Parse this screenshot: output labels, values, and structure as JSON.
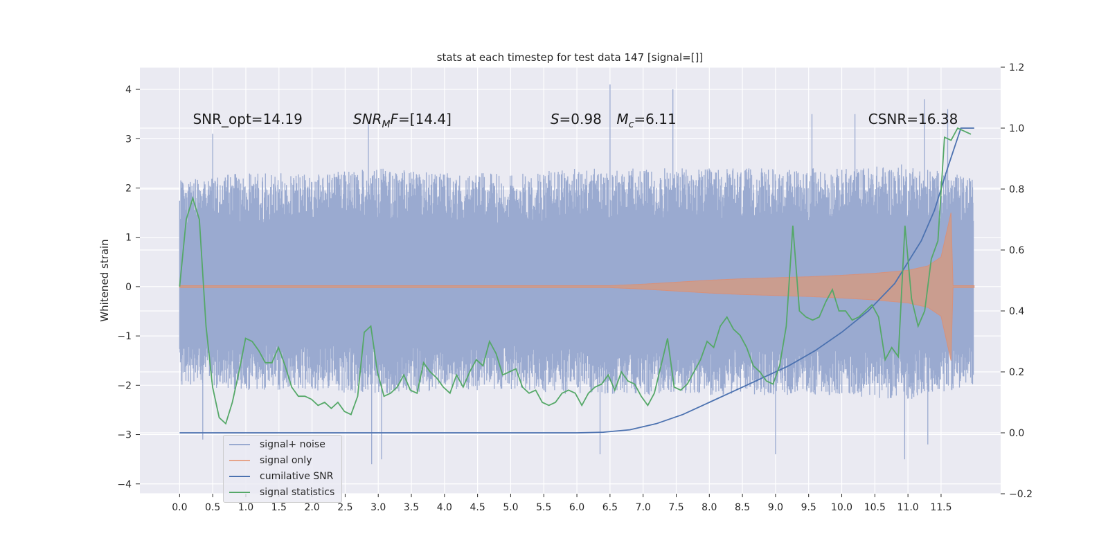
{
  "chart_data": {
    "type": "line",
    "title": "stats at each timestep for test data 147 [signal=[]]",
    "xlabel": "",
    "ylabel": "Whitened strain",
    "xlim": [
      -0.6,
      12.4
    ],
    "ylim": [
      -4.2,
      4.45
    ],
    "y2lim": [
      -0.2,
      1.2
    ],
    "x_ticks": [
      0.0,
      0.5,
      1.0,
      1.5,
      2.0,
      2.5,
      3.0,
      3.5,
      4.0,
      4.5,
      5.0,
      5.5,
      6.0,
      6.5,
      7.0,
      7.5,
      8.0,
      8.5,
      9.0,
      9.5,
      10.0,
      10.5,
      11.0,
      11.5
    ],
    "x_tick_labels": [
      "0.0",
      "0.5",
      "1.0",
      "1.5",
      "2.0",
      "2.5",
      "3.0",
      "3.5",
      "4.0",
      "4.5",
      "5.0",
      "5.5",
      "6.0",
      "6.5",
      "7.0",
      "7.5",
      "8.0",
      "8.5",
      "9.0",
      "9.5",
      "10.0",
      "10.5",
      "11.0",
      "11.5"
    ],
    "y_ticks": [
      -4,
      -3,
      -2,
      -1,
      0,
      1,
      2,
      3,
      4
    ],
    "y_tick_labels": [
      "−4",
      "−3",
      "−2",
      "−1",
      "0",
      "1",
      "2",
      "3",
      "4"
    ],
    "y2_ticks": [
      -0.2,
      0.0,
      0.2,
      0.4,
      0.6,
      0.8,
      1.0,
      1.2
    ],
    "y2_tick_labels": [
      "−0.2",
      "0.0",
      "0.2",
      "0.4",
      "0.6",
      "0.8",
      "1.0",
      "1.2"
    ],
    "annotations": [
      {
        "text": "SNR_opt=14.19",
        "x": 0.2,
        "y": 3.3
      },
      {
        "text": "SNR_MF=[14.4]",
        "x": 2.62,
        "y": 3.3
      },
      {
        "text": "S=0.98",
        "x": 5.6,
        "y": 3.3
      },
      {
        "text": "M_c=6.11",
        "x": 6.6,
        "y": 3.3
      },
      {
        "text": "CSNR=16.38",
        "x": 10.4,
        "y": 3.3
      }
    ],
    "noise_envelope": {
      "x": [
        0,
        1,
        2,
        3,
        4,
        5,
        6,
        7,
        8,
        9,
        10,
        11,
        11.99
      ],
      "upper": [
        2.2,
        2.3,
        2.3,
        2.4,
        2.3,
        2.3,
        2.4,
        2.4,
        2.4,
        2.4,
        2.4,
        2.5,
        2.2
      ],
      "lower": [
        -2.0,
        -2.1,
        -2.1,
        -2.2,
        -2.1,
        -2.1,
        -2.2,
        -2.2,
        -2.2,
        -2.2,
        -2.2,
        -2.3,
        -2.0
      ],
      "spikes_up": [
        [
          0.5,
          3.1
        ],
        [
          2.85,
          3.3
        ],
        [
          6.5,
          4.1
        ],
        [
          7.45,
          4.0
        ],
        [
          9.55,
          3.5
        ],
        [
          10.2,
          3.5
        ],
        [
          11.25,
          3.8
        ],
        [
          11.6,
          3.6
        ]
      ],
      "spikes_down": [
        [
          0.35,
          -3.1
        ],
        [
          2.9,
          -3.6
        ],
        [
          3.05,
          -3.5
        ],
        [
          6.35,
          -3.4
        ],
        [
          9.0,
          -3.4
        ],
        [
          10.95,
          -3.5
        ],
        [
          11.3,
          -3.2
        ]
      ]
    },
    "series": [
      {
        "name": "signal+ noise",
        "color": "#9aaad0",
        "axis": "left"
      },
      {
        "name": "signal only",
        "color": "#dd8452",
        "axis": "left",
        "envelope_x": [
          0,
          6.5,
          7.0,
          7.5,
          8.0,
          8.5,
          9.0,
          9.5,
          10.0,
          10.5,
          11.0,
          11.3,
          11.5,
          11.65,
          11.68,
          11.7,
          12.0
        ],
        "envelope_amp": [
          0.02,
          0.02,
          0.05,
          0.09,
          0.13,
          0.16,
          0.18,
          0.2,
          0.23,
          0.27,
          0.33,
          0.42,
          0.6,
          1.5,
          0.02,
          0.02,
          0.02
        ]
      },
      {
        "name": "cumilative SNR",
        "color": "#4c72b0",
        "axis": "right",
        "x": [
          0,
          6.0,
          6.4,
          6.8,
          7.2,
          7.6,
          8.0,
          8.4,
          8.8,
          9.2,
          9.6,
          10.0,
          10.4,
          10.8,
          11.2,
          11.4,
          11.6,
          11.8,
          12.0
        ],
        "y": [
          0,
          0,
          0.002,
          0.01,
          0.03,
          0.06,
          0.1,
          0.14,
          0.18,
          0.22,
          0.27,
          0.33,
          0.4,
          0.49,
          0.63,
          0.73,
          0.87,
          1.0,
          1.0
        ]
      },
      {
        "name": "signal statistics",
        "color": "#55a868",
        "axis": "right",
        "x": [
          0.0,
          0.1,
          0.2,
          0.3,
          0.4,
          0.5,
          0.6,
          0.7,
          0.8,
          0.9,
          1.0,
          1.1,
          1.2,
          1.3,
          1.4,
          1.5,
          1.6,
          1.7,
          1.8,
          1.9,
          2.0,
          2.1,
          2.2,
          2.3,
          2.4,
          2.5,
          2.6,
          2.7,
          2.8,
          2.9,
          3.0,
          3.1,
          3.2,
          3.3,
          3.4,
          3.5,
          3.6,
          3.7,
          3.8,
          3.9,
          4.0,
          4.1,
          4.2,
          4.3,
          4.4,
          4.5,
          4.6,
          4.7,
          4.8,
          4.9,
          5.0,
          5.1,
          5.2,
          5.3,
          5.4,
          5.5,
          5.6,
          5.7,
          5.8,
          5.9,
          6.0,
          6.1,
          6.2,
          6.3,
          6.4,
          6.5,
          6.6,
          6.7,
          6.8,
          6.9,
          7.0,
          7.1,
          7.2,
          7.3,
          7.4,
          7.5,
          7.6,
          7.7,
          7.8,
          7.9,
          8.0,
          8.1,
          8.2,
          8.3,
          8.4,
          8.5,
          8.6,
          8.7,
          8.8,
          8.9,
          9.0,
          9.1,
          9.2,
          9.3,
          9.4,
          9.5,
          9.6,
          9.7,
          9.8,
          9.9,
          10.0,
          10.1,
          10.2,
          10.3,
          10.4,
          10.5,
          10.6,
          10.7,
          10.8,
          10.9,
          11.0,
          11.1,
          11.2,
          11.3,
          11.4,
          11.5,
          11.6,
          11.7,
          11.8,
          11.9,
          12.0
        ],
        "y": [
          0.48,
          0.7,
          0.77,
          0.7,
          0.35,
          0.15,
          0.05,
          0.03,
          0.1,
          0.2,
          0.31,
          0.3,
          0.27,
          0.23,
          0.23,
          0.28,
          0.22,
          0.15,
          0.12,
          0.12,
          0.11,
          0.09,
          0.1,
          0.08,
          0.1,
          0.07,
          0.06,
          0.12,
          0.33,
          0.35,
          0.2,
          0.12,
          0.13,
          0.15,
          0.19,
          0.14,
          0.13,
          0.23,
          0.2,
          0.18,
          0.15,
          0.13,
          0.19,
          0.15,
          0.2,
          0.24,
          0.22,
          0.3,
          0.26,
          0.19,
          0.2,
          0.21,
          0.15,
          0.13,
          0.14,
          0.1,
          0.09,
          0.1,
          0.13,
          0.14,
          0.13,
          0.09,
          0.13,
          0.15,
          0.16,
          0.19,
          0.14,
          0.2,
          0.17,
          0.16,
          0.12,
          0.09,
          0.13,
          0.22,
          0.31,
          0.15,
          0.14,
          0.16,
          0.2,
          0.24,
          0.3,
          0.28,
          0.35,
          0.38,
          0.34,
          0.32,
          0.28,
          0.22,
          0.2,
          0.17,
          0.16,
          0.22,
          0.35,
          0.68,
          0.4,
          0.38,
          0.37,
          0.38,
          0.43,
          0.47,
          0.4,
          0.4,
          0.37,
          0.38,
          0.4,
          0.42,
          0.38,
          0.24,
          0.28,
          0.25,
          0.68,
          0.44,
          0.35,
          0.4,
          0.57,
          0.63,
          0.97,
          0.96,
          1.0,
          0.99,
          0.98
        ],
        "x_end": 11.95
      }
    ],
    "legend": {
      "position": "lower-left",
      "entries": [
        "signal+ noise",
        "signal only",
        "cumilative SNR",
        "signal statistics"
      ]
    },
    "grid": true,
    "background": "#eaeaf2"
  }
}
